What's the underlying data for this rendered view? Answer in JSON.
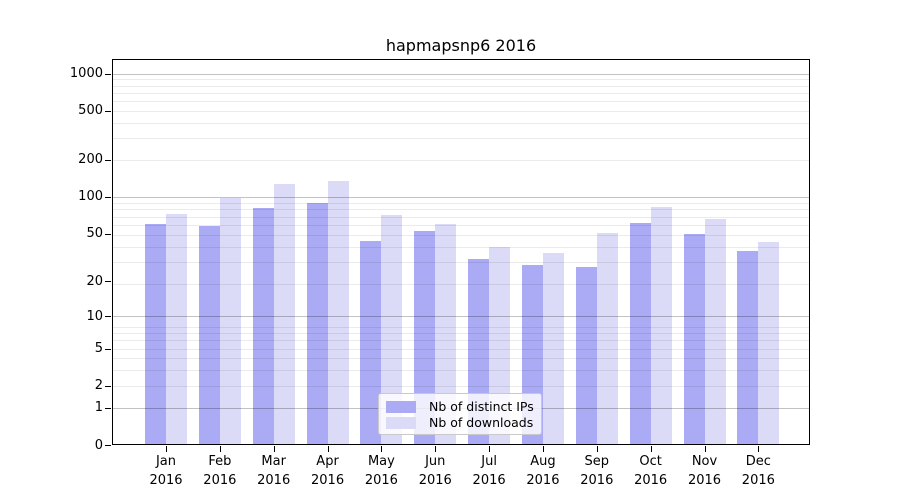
{
  "chart_title": "hapmapsnp6 2016",
  "year": "2016",
  "y_axis": {
    "tick_labels": [
      "0",
      "1",
      "2",
      "5",
      "10",
      "20",
      "50",
      "100",
      "200",
      "500",
      "1000"
    ]
  },
  "legend": {
    "items": [
      {
        "label": "Nb of distinct IPs",
        "color": "#aaaaf5"
      },
      {
        "label": "Nb of downloads",
        "color": "#dbdbf8"
      }
    ]
  },
  "chart_data": {
    "type": "bar",
    "title": "hapmapsnp6 2016",
    "categories": [
      "Jan 2016",
      "Feb 2016",
      "Mar 2016",
      "Apr 2016",
      "May 2016",
      "Jun 2016",
      "Jul 2016",
      "Aug 2016",
      "Sep 2016",
      "Oct 2016",
      "Nov 2016",
      "Dec 2016"
    ],
    "month_labels": [
      [
        "Jan",
        "2016"
      ],
      [
        "Feb",
        "2016"
      ],
      [
        "Mar",
        "2016"
      ],
      [
        "Apr",
        "2016"
      ],
      [
        "May",
        "2016"
      ],
      [
        "Jun",
        "2016"
      ],
      [
        "Jul",
        "2016"
      ],
      [
        "Aug",
        "2016"
      ],
      [
        "Sep",
        "2016"
      ],
      [
        "Oct",
        "2016"
      ],
      [
        "Nov",
        "2016"
      ],
      [
        "Dec",
        "2016"
      ]
    ],
    "series": [
      {
        "name": "Nb of distinct IPs",
        "color": "#aaaaf5",
        "values": [
          59,
          57,
          80,
          88,
          43,
          52,
          30,
          27,
          26,
          60,
          49,
          35
        ]
      },
      {
        "name": "Nb of downloads",
        "color": "#dbdbf8",
        "values": [
          71,
          96,
          125,
          132,
          70,
          59,
          38,
          34,
          50,
          81,
          65,
          42
        ]
      }
    ],
    "yscale": "log1p",
    "y_ticks": [
      0,
      1,
      2,
      5,
      10,
      20,
      50,
      100,
      200,
      500,
      1000
    ],
    "ylim": [
      0,
      1320
    ],
    "grid": true,
    "legend_position": "lower center"
  }
}
